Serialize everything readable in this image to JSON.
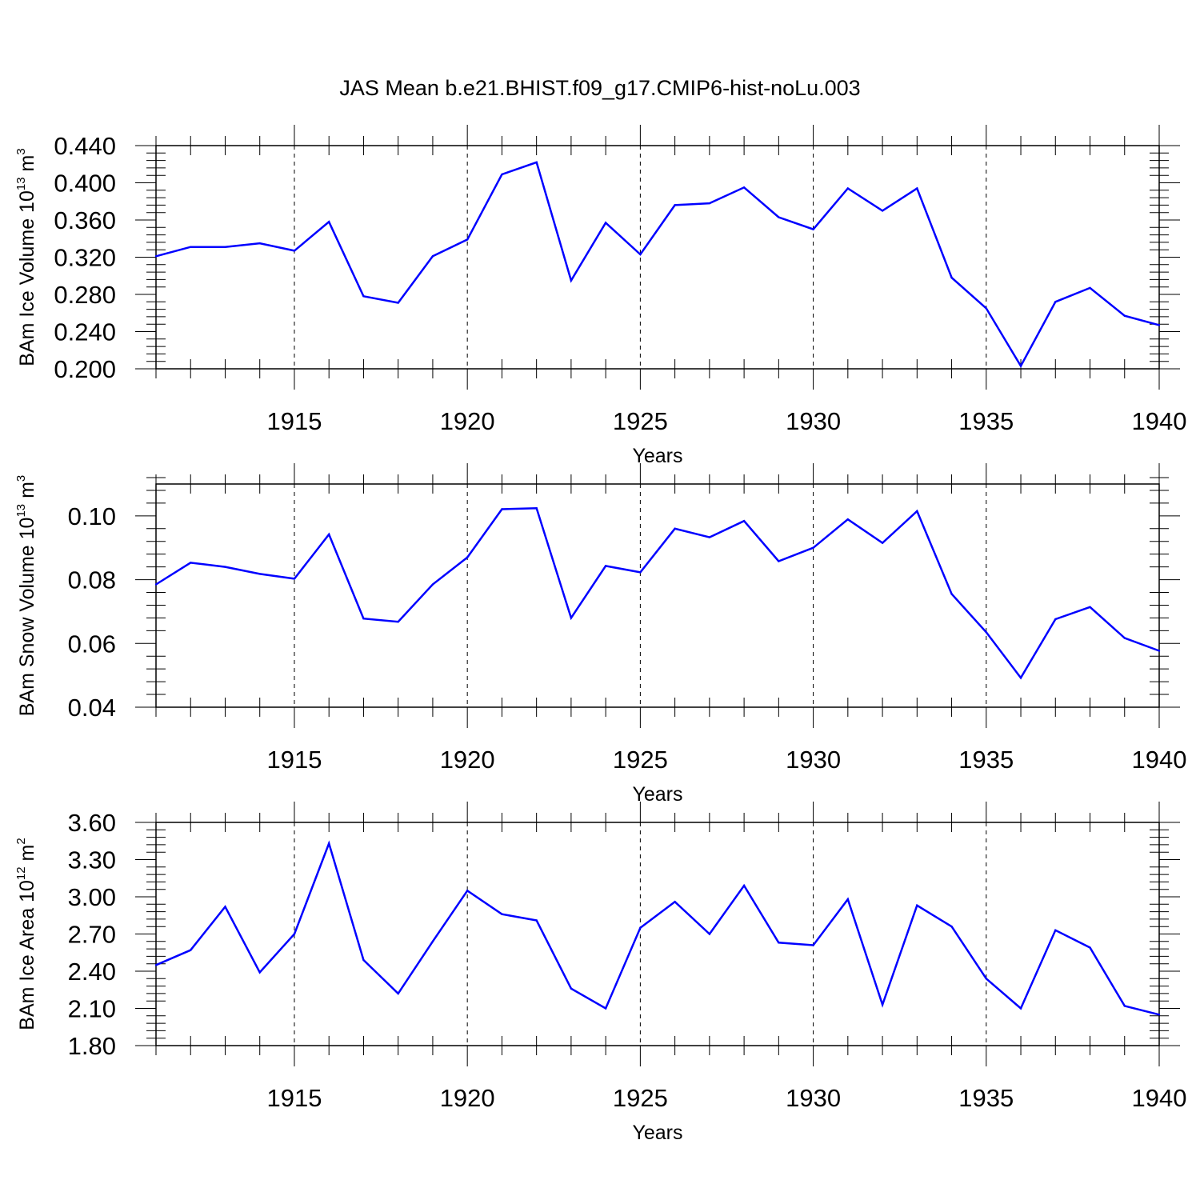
{
  "title": "JAS Mean b.e21.BHIST.f09_g17.CMIP6-hist-noLu.003",
  "colors": {
    "line": "#0000ff",
    "axis": "#000000",
    "grid": "#000000"
  },
  "chart_data": [
    {
      "type": "line",
      "ylabel": {
        "main": "BAm Ice Volume 10",
        "sup": "13",
        "unit": " m",
        "unit_sup": "3"
      },
      "xlabel": "Years",
      "xlim": [
        1911,
        1940
      ],
      "ylim": [
        0.2,
        0.44
      ],
      "yticks": [
        0.2,
        0.24,
        0.28,
        0.32,
        0.36,
        0.4,
        0.44
      ],
      "ytick_labels": [
        "0.200",
        "0.240",
        "0.280",
        "0.320",
        "0.360",
        "0.400",
        "0.440"
      ],
      "xticks": [
        1915,
        1920,
        1925,
        1930,
        1935,
        1940
      ],
      "xtick_labels": [
        "1915",
        "1920",
        "1925",
        "1930",
        "1935",
        "1940"
      ],
      "grid": "vertical dashed at labeled years",
      "x": [
        1911,
        1912,
        1913,
        1914,
        1915,
        1916,
        1917,
        1918,
        1919,
        1920,
        1921,
        1922,
        1923,
        1924,
        1925,
        1926,
        1927,
        1928,
        1929,
        1930,
        1931,
        1932,
        1933,
        1934,
        1935,
        1936,
        1937,
        1938,
        1939,
        1940
      ],
      "values": [
        0.321,
        0.331,
        0.331,
        0.335,
        0.327,
        0.358,
        0.278,
        0.271,
        0.321,
        0.339,
        0.409,
        0.422,
        0.295,
        0.357,
        0.323,
        0.376,
        0.378,
        0.395,
        0.363,
        0.35,
        0.394,
        0.37,
        0.394,
        0.298,
        0.265,
        0.203,
        0.272,
        0.287,
        0.257,
        0.247
      ]
    },
    {
      "type": "line",
      "ylabel": {
        "main": "BAm Snow Volume 10",
        "sup": "13",
        "unit": " m",
        "unit_sup": "3"
      },
      "xlabel": "Years",
      "xlim": [
        1911,
        1940
      ],
      "ylim": [
        0.04,
        0.11
      ],
      "yticks": [
        0.04,
        0.06,
        0.08,
        0.1
      ],
      "ytick_labels": [
        "0.04",
        "0.06",
        "0.08",
        "0.10"
      ],
      "xticks": [
        1915,
        1920,
        1925,
        1930,
        1935,
        1940
      ],
      "xtick_labels": [
        "1915",
        "1920",
        "1925",
        "1930",
        "1935",
        "1940"
      ],
      "grid": "vertical dashed at labeled years",
      "x": [
        1911,
        1912,
        1913,
        1914,
        1915,
        1916,
        1917,
        1918,
        1919,
        1920,
        1921,
        1922,
        1923,
        1924,
        1925,
        1926,
        1927,
        1928,
        1929,
        1930,
        1931,
        1932,
        1933,
        1934,
        1935,
        1936,
        1937,
        1938,
        1939,
        1940
      ],
      "values": [
        0.0785,
        0.0853,
        0.084,
        0.0818,
        0.0803,
        0.0942,
        0.0678,
        0.0668,
        0.0785,
        0.087,
        0.1021,
        0.1024,
        0.068,
        0.0843,
        0.0823,
        0.096,
        0.0933,
        0.0984,
        0.0858,
        0.09,
        0.0989,
        0.0915,
        0.1015,
        0.0755,
        0.0635,
        0.0492,
        0.0676,
        0.0714,
        0.0617,
        0.0577
      ]
    },
    {
      "type": "line",
      "ylabel": {
        "main": "BAm Ice Area 10",
        "sup": "12",
        "unit": " m",
        "unit_sup": "2"
      },
      "xlabel": "Years",
      "xlim": [
        1911,
        1940
      ],
      "ylim": [
        1.8,
        3.6
      ],
      "yticks": [
        1.8,
        2.1,
        2.4,
        2.7,
        3.0,
        3.3,
        3.6
      ],
      "ytick_labels": [
        "1.80",
        "2.10",
        "2.40",
        "2.70",
        "3.00",
        "3.30",
        "3.60"
      ],
      "xticks": [
        1915,
        1920,
        1925,
        1930,
        1935,
        1940
      ],
      "xtick_labels": [
        "1915",
        "1920",
        "1925",
        "1930",
        "1935",
        "1940"
      ],
      "grid": "vertical dashed at labeled years",
      "x": [
        1911,
        1912,
        1913,
        1914,
        1915,
        1916,
        1917,
        1918,
        1919,
        1920,
        1921,
        1922,
        1923,
        1924,
        1925,
        1926,
        1927,
        1928,
        1929,
        1930,
        1931,
        1932,
        1933,
        1934,
        1935,
        1936,
        1937,
        1938,
        1939,
        1940
      ],
      "values": [
        2.45,
        2.57,
        2.92,
        2.39,
        2.7,
        3.43,
        2.49,
        2.22,
        2.64,
        3.05,
        2.86,
        2.81,
        2.26,
        2.1,
        2.75,
        2.96,
        2.7,
        3.09,
        2.63,
        2.61,
        2.98,
        2.13,
        2.93,
        2.76,
        2.34,
        2.1,
        2.73,
        2.59,
        2.12,
        2.05
      ]
    }
  ]
}
